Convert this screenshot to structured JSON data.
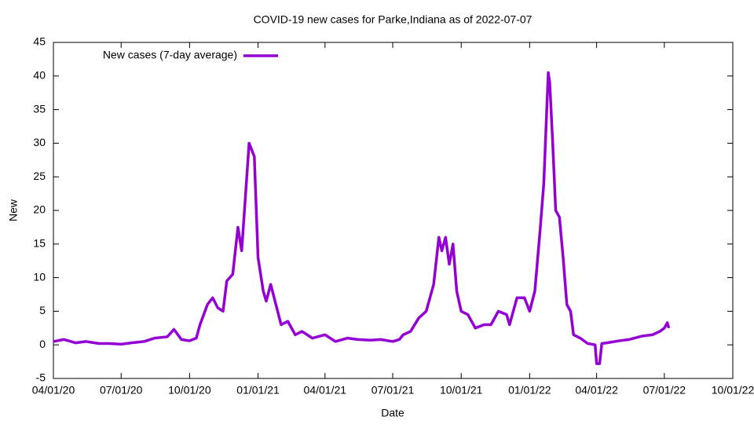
{
  "chart_data": {
    "type": "line",
    "title": "COVID-19 new cases for Parke,Indiana as of 2022-07-07",
    "x_label": "Date",
    "y_label": "New",
    "legend": "top left",
    "x": [
      "2020-04-01",
      "2020-04-15",
      "2020-05-01",
      "2020-05-15",
      "2020-06-01",
      "2020-06-15",
      "2020-07-01",
      "2020-07-15",
      "2020-08-01",
      "2020-08-15",
      "2020-09-01",
      "2020-09-10",
      "2020-09-20",
      "2020-10-01",
      "2020-10-10",
      "2020-10-15",
      "2020-10-25",
      "2020-11-01",
      "2020-11-08",
      "2020-11-15",
      "2020-11-20",
      "2020-11-28",
      "2020-12-05",
      "2020-12-10",
      "2020-12-15",
      "2020-12-20",
      "2020-12-27",
      "2021-01-01",
      "2021-01-08",
      "2021-01-12",
      "2021-01-18",
      "2021-01-25",
      "2021-02-01",
      "2021-02-10",
      "2021-02-20",
      "2021-03-01",
      "2021-03-15",
      "2021-04-01",
      "2021-04-15",
      "2021-05-01",
      "2021-05-15",
      "2021-06-01",
      "2021-06-15",
      "2021-07-01",
      "2021-07-10",
      "2021-07-15",
      "2021-07-25",
      "2021-08-05",
      "2021-08-15",
      "2021-08-25",
      "2021-09-01",
      "2021-09-05",
      "2021-09-10",
      "2021-09-15",
      "2021-09-20",
      "2021-09-25",
      "2021-10-01",
      "2021-10-10",
      "2021-10-20",
      "2021-11-01",
      "2021-11-10",
      "2021-11-20",
      "2021-12-01",
      "2021-12-05",
      "2021-12-15",
      "2021-12-25",
      "2022-01-01",
      "2022-01-08",
      "2022-01-15",
      "2022-01-20",
      "2022-01-26",
      "2022-01-28",
      "2022-02-01",
      "2022-02-05",
      "2022-02-10",
      "2022-02-15",
      "2022-02-20",
      "2022-02-25",
      "2022-03-01",
      "2022-03-10",
      "2022-03-20",
      "2022-03-30",
      "2022-04-01",
      "2022-04-05",
      "2022-04-08",
      "2022-04-15",
      "2022-05-01",
      "2022-05-15",
      "2022-06-01",
      "2022-06-15",
      "2022-06-25",
      "2022-07-01",
      "2022-07-05",
      "2022-07-07"
    ],
    "series": [
      {
        "name": "New cases (7-day average)",
        "color": "#9400d3",
        "values": [
          0.5,
          0.8,
          0.3,
          0.5,
          0.2,
          0.2,
          0.1,
          0.3,
          0.5,
          1.0,
          1.2,
          2.3,
          0.8,
          0.6,
          1.0,
          3,
          6,
          7,
          5.5,
          5,
          9.5,
          10.5,
          17.5,
          14,
          22,
          30,
          28,
          13,
          8,
          6.5,
          9,
          6,
          3,
          3.5,
          1.5,
          2,
          1,
          1.5,
          0.5,
          1,
          0.8,
          0.7,
          0.8,
          0.5,
          0.8,
          1.5,
          2,
          4,
          5,
          9,
          16,
          14,
          16,
          12,
          15,
          8,
          5,
          4.5,
          2.5,
          3,
          3,
          5,
          4.5,
          3,
          7,
          7,
          5,
          8,
          17,
          24,
          40.5,
          39,
          30,
          20,
          19,
          13,
          6,
          5,
          1.5,
          1,
          0.2,
          0,
          -2.8,
          -2.8,
          0.2,
          0.3,
          0.6,
          0.8,
          1.3,
          1.5,
          2.0,
          2.5,
          3.3,
          2.5
        ]
      }
    ],
    "xlim": [
      "2020-04-01",
      "2022-10-01"
    ],
    "xticks": [
      {
        "value": "2020-04-01",
        "label": "04/01/20"
      },
      {
        "value": "2020-07-01",
        "label": "07/01/20"
      },
      {
        "value": "2020-10-01",
        "label": "10/01/20"
      },
      {
        "value": "2021-01-01",
        "label": "01/01/21"
      },
      {
        "value": "2021-04-01",
        "label": "04/01/21"
      },
      {
        "value": "2021-07-01",
        "label": "07/01/21"
      },
      {
        "value": "2021-10-01",
        "label": "10/01/21"
      },
      {
        "value": "2022-01-01",
        "label": "01/01/22"
      },
      {
        "value": "2022-04-01",
        "label": "04/01/22"
      },
      {
        "value": "2022-07-01",
        "label": "07/01/22"
      },
      {
        "value": "2022-10-01",
        "label": "10/01/22"
      }
    ],
    "ylim": [
      -5,
      45
    ],
    "yticks": [
      -5,
      0,
      5,
      10,
      15,
      20,
      25,
      30,
      35,
      40,
      45
    ]
  }
}
